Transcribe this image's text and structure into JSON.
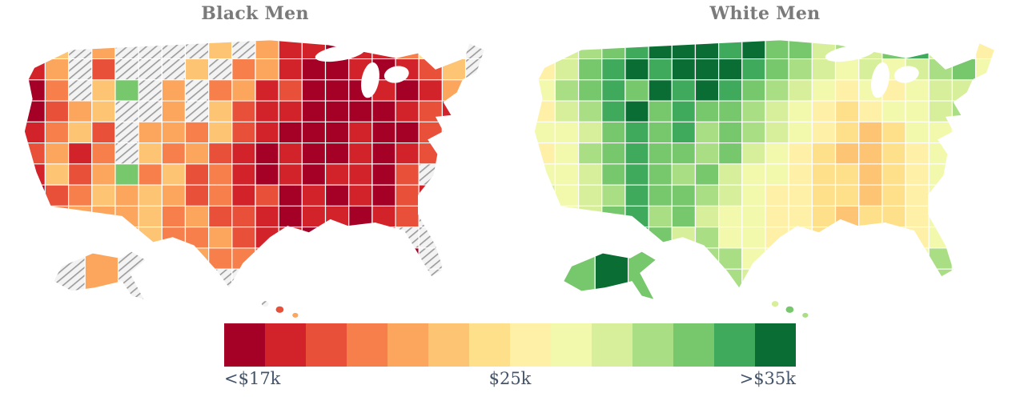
{
  "page": {
    "background": "#ffffff",
    "title_color": "#7a7a7a"
  },
  "legend": {
    "labels": {
      "min": "<$17k",
      "mid": "$25k",
      "max": ">$35k"
    },
    "text_color": "#44546a",
    "colors": [
      "#a50026",
      "#d2232a",
      "#e8503a",
      "#f67f4b",
      "#fca55d",
      "#fdc474",
      "#fee08b",
      "#fef0a6",
      "#f2f8ac",
      "#d7ef9b",
      "#aade84",
      "#77c76d",
      "#3fa95c",
      "#0a6d33"
    ],
    "no_data": "gray diagonal hatch = no data"
  },
  "chart_data": [
    {
      "type": "heatmap",
      "title": "Black Men",
      "map": "USA choropleth (incl. Alaska, Hawaii)",
      "values_encoding": "each char = income color bin index into legend.colors (0 = <$17k dark red ... 13 = >$35k dark green); x = no data (hatched)",
      "palette_index_grid": [
        "25x4xxxx5x41101136xx",
        "14x2xxx5x3410010125x",
        "03x5bx4x34120001014x",
        "0245xx4x52110000121x",
        "1352x44352100010023x",
        "2413x5342101001012xx",
        "1524b352310101102xxx",
        "023545423120101021xx",
        "23444534221011012xxx",
        "xxxx453342110101xxxx",
        "xxxxx444332x10100xxx",
        "xxxxxx4xxxxxx010xxxx"
      ],
      "alaska_cells": [
        "x",
        "4",
        "x"
      ],
      "hawaii_cells": [
        "x",
        "2",
        "4"
      ]
    },
    {
      "type": "heatmap",
      "title": "White Men",
      "map": "USA choropleth (incl. Alaska, Hawaii)",
      "values_encoding": "each char = income color bin index into legend.colors (0 = <$17k dark red ... 13 = >$35k dark green); x = no data (hatched)",
      "palette_index_grid": [
        "89abcdddcdbb9a9bc987",
        "79bcdcdddcba98989ab8",
        "8abcbdcdcba987878997",
        "79acdbcbba98767889a8",
        "889bcbcaba9876568878",
        "78abcbbab98765567877",
        "889bcbab988766567888",
        "989acbba987766567898",
        "989bcab98877656678a9",
        "9a9acb9a8877665678b9",
        "99a99a9aa87766698aa9",
        "9aa9aa9aa9aaa989aaaa"
      ],
      "alaska_cells": [
        "b",
        "d",
        "b"
      ],
      "hawaii_cells": [
        "9",
        "b",
        "a"
      ]
    }
  ]
}
